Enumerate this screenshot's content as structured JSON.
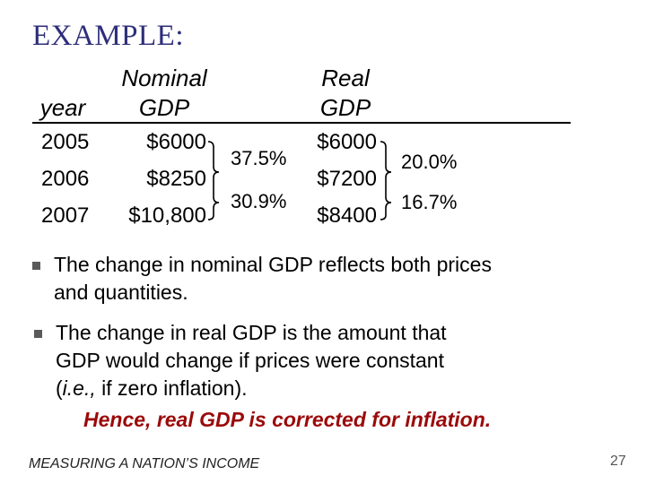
{
  "title": "EXAMPLE:",
  "table": {
    "headers": {
      "year": "year",
      "nominal_line1": "Nominal",
      "nominal_line2": "GDP",
      "real_line1": "Real",
      "real_line2": "GDP"
    },
    "rows": [
      {
        "year": "2005",
        "nominal": "$6000",
        "real": "$6000"
      },
      {
        "year": "2006",
        "nominal": "$8250",
        "real": "$7200"
      },
      {
        "year": "2007",
        "nominal": "$10,800",
        "real": "$8400"
      }
    ],
    "nominal_changes": [
      "37.5%",
      "30.9%"
    ],
    "real_changes": [
      "20.0%",
      "16.7%"
    ]
  },
  "bullets": [
    {
      "line1": "The change in nominal GDP reflects both prices",
      "line2": "and quantities."
    },
    {
      "line1": "The change in real GDP is the amount that",
      "line2": "GDP would change if prices were constant",
      "line3_italic": "i.e.,",
      "line3_rest": " if zero inflation).",
      "conclusion": "Hence, real GDP is corrected for inflation."
    }
  ],
  "footer": "MEASURING A NATION’S INCOME",
  "page_number": "27"
}
